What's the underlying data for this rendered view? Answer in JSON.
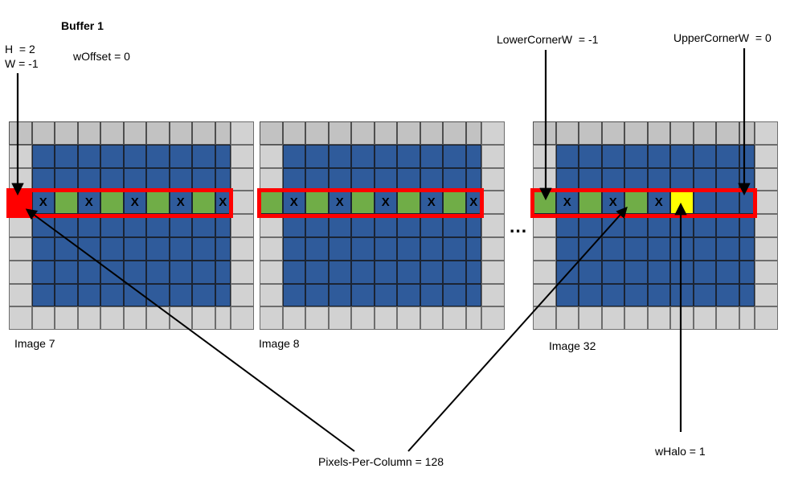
{
  "title": "Buffer 1",
  "params": {
    "h": "H  = 2",
    "w": "W = -1",
    "woffset": "wOffset = 0",
    "lower_corner": "LowerCornerW  = -1",
    "upper_corner": "UpperCornerW  = 0",
    "pixels_per_column": "Pixels-Per-Column = 128",
    "whalo": "wHalo = 1",
    "ellipsis": "..."
  },
  "cell_x_label": "X",
  "colors": {
    "blue": "#2F5B9B",
    "green": "#70AD47",
    "gray": "#D2D2D2",
    "gray_top_row": "#C2C2C2",
    "red": "#FF0000",
    "yellow": "#FFFF00"
  },
  "legend_semantics": {
    "E": "halo-border-cell",
    "B": "image-interior-cell",
    "X": "sampled-pixel-cell",
    "G": "pixels-per-column-cell",
    "R": "lower-corner-cell",
    "Y": "whalo-cell"
  },
  "grids": [
    {
      "label": "Image 7",
      "rows": [
        "EEEEEEEEEEE",
        "EBBBBBBBBBE",
        "EBBBBBBBBBE",
        "RXGXGXGXGXE",
        "EBBBBBBBBBE",
        "EBBBBBBBBBE",
        "EBBBBBBBBBE",
        "EBBBBBBBBBE",
        "EEEEEEEEEEE"
      ]
    },
    {
      "label": "Image 8",
      "rows": [
        "EEEEEEEEEEE",
        "EBBBBBBBBBE",
        "EBBBBBBBBBE",
        "GXGXGXGXGXE",
        "EBBBBBBBBBE",
        "EBBBBBBBBBE",
        "EBBBBBBBBBE",
        "EBBBBBBBBBE",
        "EEEEEEEEEEE"
      ]
    },
    {
      "label": "Image 32",
      "rows": [
        "EEEEEEEEEEE",
        "EBBBBBBBBBE",
        "EBBBBBBBBBE",
        "GXGXGXYBBBE",
        "EBBBBBBBBBE",
        "EBBBBBBBBBE",
        "EBBBBBBBBBE",
        "EBBBBBBBBBE",
        "EEEEEEEEEEE"
      ]
    }
  ]
}
